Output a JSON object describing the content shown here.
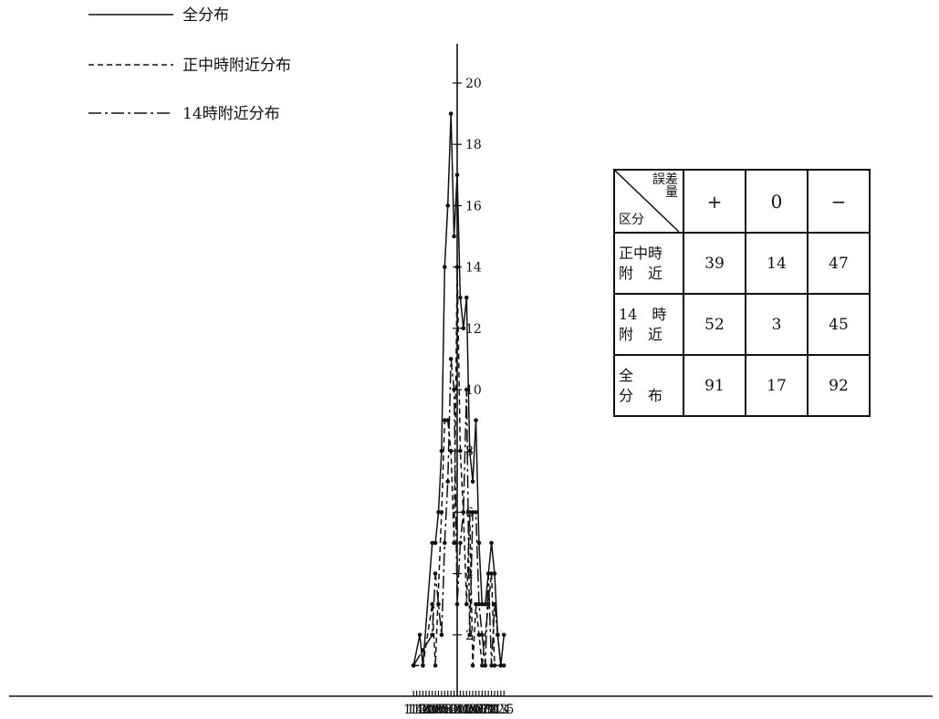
{
  "legend": [
    {
      "label": "全分布",
      "style": "solid"
    },
    {
      "label": "正中時附近分布",
      "style": "dashed"
    },
    {
      "label": "14時附近分布",
      "style": "dashdot"
    }
  ],
  "table": {
    "corner_top": "誤差量",
    "corner_bottom": "区分",
    "columns": [
      "+",
      "0",
      "−"
    ],
    "rows": [
      {
        "label_top": "正中時",
        "label_bottom": "附　近",
        "values": [
          "39",
          "14",
          "47"
        ]
      },
      {
        "label_top": "14　時",
        "label_bottom": "附　近",
        "values": [
          "52",
          "3",
          "45"
        ]
      },
      {
        "label_top": "全",
        "label_bottom": "分　布",
        "values": [
          "91",
          "17",
          "92"
        ]
      }
    ]
  },
  "chart_data": {
    "type": "line",
    "x": [
      -1.4,
      -1.3,
      -1.2,
      -1.1,
      -1.0,
      -0.9,
      -0.8,
      -0.7,
      -0.6,
      -0.5,
      -0.4,
      -0.3,
      -0.2,
      -0.1,
      0,
      0.1,
      0.2,
      0.3,
      0.4,
      0.5,
      0.6,
      0.7,
      0.8,
      0.9,
      1.0,
      1.1,
      1.2,
      1.3,
      1.4,
      1.5
    ],
    "x_tick_labels": [
      "1.4",
      "1.3",
      "1.2",
      "1.1",
      "1.0",
      "0.9",
      "0.8",
      "0.7",
      "0.6",
      "0.5",
      "0.4",
      "0.3",
      "0.2",
      "0.1",
      "0",
      "0.1",
      "0.2",
      "0.3",
      "0.4",
      "0.5",
      "0.6",
      "0.7",
      "0.8",
      "0.9",
      "1.0",
      "1.1",
      "1.2",
      "1.3",
      "1.4",
      "1.5"
    ],
    "y_ticks": [
      2,
      4,
      6,
      8,
      10,
      12,
      14,
      16,
      18,
      20
    ],
    "ylim": [
      0,
      21
    ],
    "series": [
      {
        "name": "全分布",
        "style": "solid",
        "points": [
          [
            -1.4,
            1
          ],
          [
            -1.2,
            2
          ],
          [
            -1.1,
            1
          ],
          [
            -0.8,
            5
          ],
          [
            -0.7,
            5
          ],
          [
            -0.6,
            6
          ],
          [
            -0.5,
            8
          ],
          [
            -0.4,
            14
          ],
          [
            -0.3,
            16
          ],
          [
            -0.2,
            19
          ],
          [
            -0.1,
            15
          ],
          [
            0,
            17
          ],
          [
            0.1,
            13
          ],
          [
            0.2,
            12
          ],
          [
            0.3,
            13
          ],
          [
            0.4,
            8
          ],
          [
            0.5,
            7
          ],
          [
            0.6,
            9
          ],
          [
            0.7,
            5
          ],
          [
            0.8,
            3
          ],
          [
            0.9,
            3
          ],
          [
            1.1,
            5
          ],
          [
            1.2,
            4
          ],
          [
            1.3,
            2
          ],
          [
            1.4,
            1
          ],
          [
            1.5,
            2
          ]
        ]
      },
      {
        "name": "正中時附近分布",
        "style": "dashed",
        "points": [
          [
            -1.4,
            1
          ],
          [
            -1.1,
            1
          ],
          [
            -0.8,
            3
          ],
          [
            -0.7,
            1
          ],
          [
            -0.5,
            6
          ],
          [
            -0.4,
            9
          ],
          [
            -0.3,
            9
          ],
          [
            -0.2,
            8
          ],
          [
            -0.1,
            5
          ],
          [
            0,
            14
          ],
          [
            0.1,
            8
          ],
          [
            0.2,
            6
          ],
          [
            0.3,
            3
          ],
          [
            0.4,
            6
          ],
          [
            0.5,
            1
          ],
          [
            0.6,
            3
          ],
          [
            0.7,
            2
          ],
          [
            0.8,
            1
          ],
          [
            1.0,
            3
          ],
          [
            1.1,
            4
          ],
          [
            1.2,
            1
          ],
          [
            1.5,
            1
          ]
        ]
      },
      {
        "name": "14時附近分布",
        "style": "dashdot",
        "points": [
          [
            -1.4,
            1
          ],
          [
            -1.1,
            1.5
          ],
          [
            -0.8,
            2
          ],
          [
            -0.7,
            4
          ],
          [
            -0.6,
            3
          ],
          [
            -0.5,
            2
          ],
          [
            -0.4,
            5
          ],
          [
            -0.3,
            7
          ],
          [
            -0.2,
            11
          ],
          [
            -0.1,
            10
          ],
          [
            0,
            3
          ],
          [
            0.1,
            5
          ],
          [
            0.2,
            6
          ],
          [
            0.3,
            10
          ],
          [
            0.4,
            2
          ],
          [
            0.5,
            6
          ],
          [
            0.6,
            6
          ],
          [
            0.7,
            3
          ],
          [
            0.8,
            2
          ],
          [
            0.9,
            1
          ],
          [
            1.0,
            4
          ],
          [
            1.1,
            1
          ],
          [
            1.2,
            3
          ],
          [
            1.3,
            2
          ],
          [
            1.4,
            1
          ]
        ]
      }
    ]
  }
}
